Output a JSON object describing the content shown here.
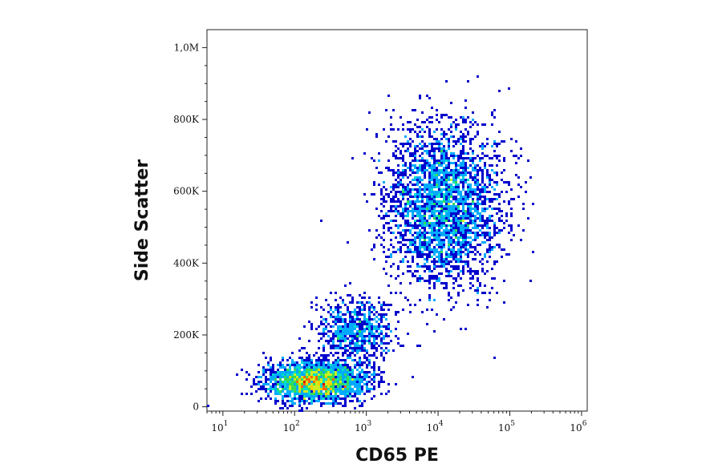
{
  "chart_data": {
    "type": "scatter",
    "title": "",
    "xlabel": "CD65 PE",
    "ylabel": "Side Scatter",
    "x_scale": "log",
    "xlim": [
      6,
      1200000
    ],
    "ylim": [
      -12000,
      1050000
    ],
    "x_ticks": [
      {
        "value": 10,
        "base": "10",
        "exp": "1"
      },
      {
        "value": 100,
        "base": "10",
        "exp": "2"
      },
      {
        "value": 1000,
        "base": "10",
        "exp": "3"
      },
      {
        "value": 10000,
        "base": "10",
        "exp": "4"
      },
      {
        "value": 100000,
        "base": "10",
        "exp": "5"
      },
      {
        "value": 1000000,
        "base": "10",
        "exp": "6"
      }
    ],
    "y_ticks": [
      {
        "value": 0,
        "label": "0"
      },
      {
        "value": 200000,
        "label": "200K"
      },
      {
        "value": 400000,
        "label": "400K"
      },
      {
        "value": 600000,
        "label": "600K"
      },
      {
        "value": 800000,
        "label": "800K"
      },
      {
        "value": 1000000,
        "label": "1,0M"
      }
    ],
    "grid": false,
    "legend": "none",
    "color_scale": [
      "#0000cc",
      "#0055ff",
      "#00aaff",
      "#00ddcc",
      "#33dd55",
      "#ccee22",
      "#ffcc00",
      "#ff6600",
      "#dd0000"
    ],
    "populations": [
      {
        "x_center": 200,
        "x_spread_log10": 0.35,
        "y_center": 70000,
        "y_spread": 28000,
        "points": 2400
      },
      {
        "x_center": 700,
        "x_spread_log10": 0.25,
        "y_center": 210000,
        "y_spread": 45000,
        "points": 700
      },
      {
        "x_center": 12000,
        "x_spread_log10": 0.4,
        "y_center": 560000,
        "y_spread": 110000,
        "points": 3000
      }
    ]
  }
}
